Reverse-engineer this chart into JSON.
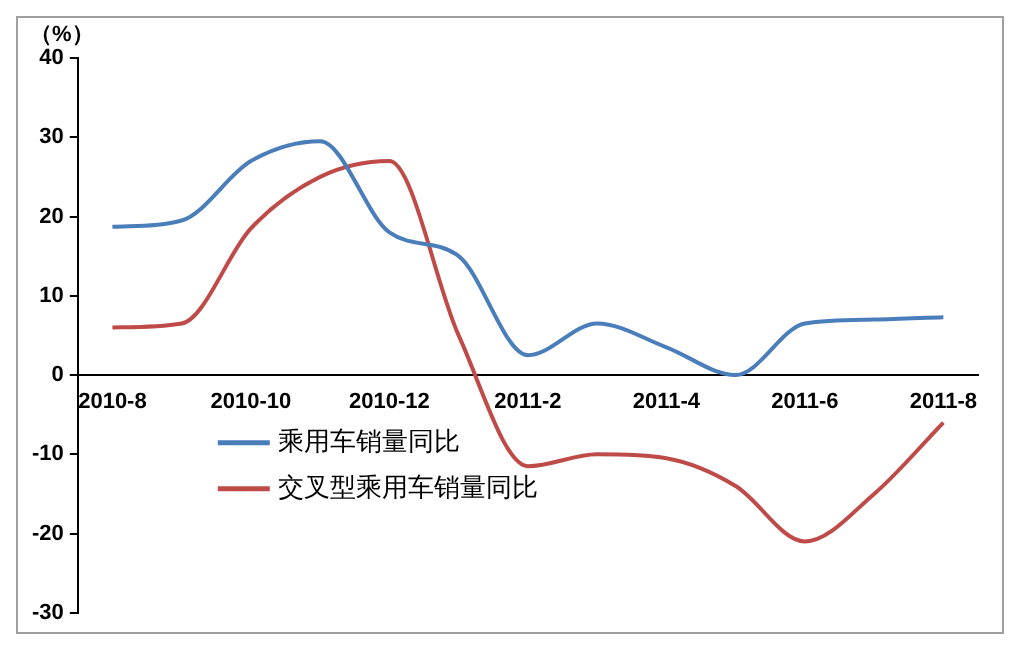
{
  "chart_data": {
    "type": "line",
    "ylabel": "（%）",
    "categories": [
      "2010-8",
      null,
      "2010-10",
      null,
      "2010-12",
      null,
      "2011-2",
      null,
      "2011-4",
      null,
      "2011-6",
      null,
      "2011-8"
    ],
    "series": [
      {
        "name": "乘用车销量同比",
        "color": "#4a7ebb",
        "values": [
          18.7,
          19.5,
          27,
          29.5,
          18,
          15,
          2.5,
          6.5,
          3.5,
          0,
          6.5,
          7,
          7.3
        ]
      },
      {
        "name": "交叉型乘用车销量同比",
        "color": "#be4b48",
        "values": [
          6,
          6.5,
          18.5,
          25,
          27,
          5,
          -11.5,
          -10,
          -10.5,
          -14,
          -21,
          -15,
          -6
        ]
      }
    ],
    "ylim": [
      -30,
      40
    ],
    "yticks": [
      -30,
      -20,
      -10,
      0,
      10,
      20,
      30,
      40
    ],
    "grid": false,
    "legend": "bottom left",
    "marker": "none",
    "line_style": "solid"
  }
}
